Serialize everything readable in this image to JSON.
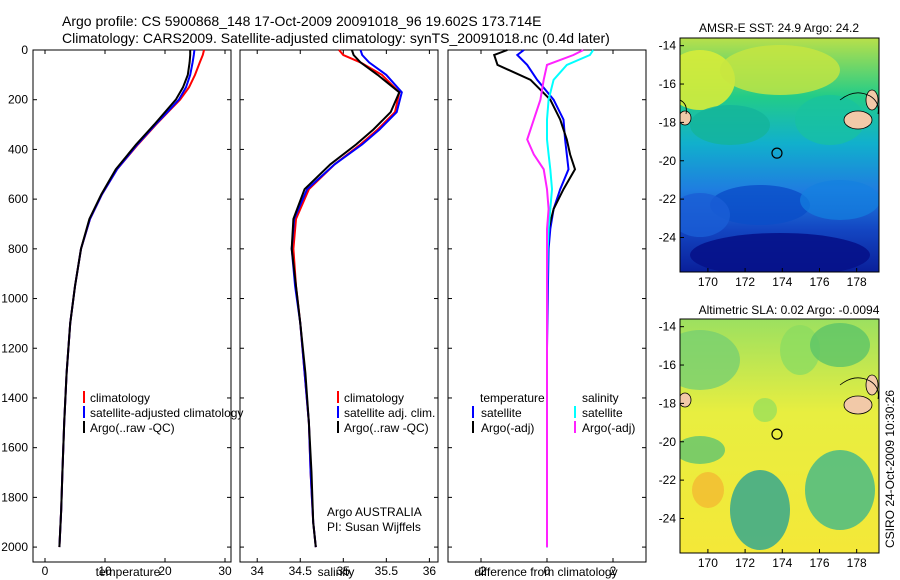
{
  "header": {
    "line1": "Argo profile: CS 5900868_148 17-Oct-2009 20091018_96 19.602S 173.714E",
    "line2": "Climatology: CARS2009. Satellite-adjusted climatology: synTS_20091018.nc (0.4d later)"
  },
  "colors": {
    "climatology": "#ff0000",
    "satellite": "#0000ff",
    "argo": "#000000",
    "argo_salinity_diff": "#ff22ff",
    "satellite_salinity_diff": "#00ffff"
  },
  "chart_data": [
    {
      "type": "line",
      "name": "temperature-profile",
      "xlabel": "temperature",
      "ylabel": "",
      "xlim": [
        -2,
        31
      ],
      "ylim": [
        0,
        2060
      ],
      "y_reversed": true,
      "xticks": [
        0,
        10,
        20,
        30
      ],
      "yticks": [
        0,
        200,
        400,
        600,
        800,
        1000,
        1200,
        1400,
        1600,
        1800,
        2000
      ],
      "legend": [
        "climatology",
        "satellite-adjusted climatology",
        "Argo(..raw -QC)"
      ],
      "legend_position": "lower-center",
      "series": [
        {
          "name": "climatology",
          "color_key": "climatology",
          "x": [
            26.5,
            26.3,
            25.8,
            25.0,
            24.0,
            22.5,
            20.5,
            18.5,
            15.5,
            12.0,
            9.5,
            7.5,
            6.0,
            5.0,
            4.2,
            3.6,
            3.2,
            2.9,
            2.7,
            2.5,
            2.4
          ],
          "y": [
            0,
            20,
            50,
            100,
            150,
            200,
            250,
            300,
            380,
            480,
            580,
            680,
            800,
            950,
            1100,
            1300,
            1500,
            1700,
            1850,
            1950,
            2000
          ]
        },
        {
          "name": "satellite-adjusted climatology",
          "color_key": "satellite",
          "x": [
            24.9,
            24.8,
            24.6,
            24.2,
            23.5,
            22.3,
            20.4,
            18.4,
            15.4,
            12.0,
            9.5,
            7.5,
            6.0,
            5.0,
            4.2,
            3.6,
            3.2,
            2.9,
            2.7,
            2.5,
            2.4
          ],
          "y": [
            0,
            20,
            50,
            100,
            150,
            200,
            250,
            300,
            380,
            480,
            580,
            680,
            800,
            950,
            1100,
            1300,
            1500,
            1700,
            1850,
            1950,
            2000
          ]
        },
        {
          "name": "Argo(..raw -QC)",
          "color_key": "argo",
          "x": [
            24.2,
            24.2,
            24.1,
            23.8,
            23.0,
            21.8,
            20.0,
            18.2,
            15.2,
            11.8,
            9.4,
            7.4,
            6.0,
            5.0,
            4.2,
            3.6,
            3.2,
            2.9,
            2.7,
            2.5,
            2.4
          ],
          "y": [
            0,
            20,
            50,
            100,
            150,
            200,
            250,
            300,
            380,
            480,
            580,
            680,
            800,
            950,
            1100,
            1300,
            1500,
            1700,
            1850,
            1950,
            2000
          ]
        }
      ]
    },
    {
      "type": "line",
      "name": "salinity-profile",
      "xlabel": "salinity",
      "ylabel": "",
      "xlim": [
        33.8,
        36.1
      ],
      "ylim": [
        0,
        2060
      ],
      "y_reversed": true,
      "xticks": [
        34,
        34.5,
        35,
        35.5,
        36
      ],
      "legend": [
        "climatology",
        "satellite adj. clim.",
        "Argo(..raw -QC)"
      ],
      "legend_position": "lower-right",
      "annotation": [
        "Argo AUSTRALIA",
        "PI: Susan Wijffels"
      ],
      "series": [
        {
          "name": "climatology",
          "color_key": "climatology",
          "x": [
            34.95,
            35.0,
            35.2,
            35.45,
            35.65,
            35.6,
            35.4,
            35.2,
            34.9,
            34.6,
            34.45,
            34.42,
            34.45,
            34.5,
            34.55,
            34.6,
            34.62,
            34.65,
            34.68
          ],
          "y": [
            0,
            20,
            50,
            100,
            170,
            250,
            320,
            380,
            460,
            560,
            680,
            800,
            950,
            1100,
            1300,
            1500,
            1700,
            1900,
            2000
          ]
        },
        {
          "name": "satellite adj. clim.",
          "color_key": "satellite",
          "x": [
            35.2,
            35.22,
            35.3,
            35.5,
            35.68,
            35.62,
            35.42,
            35.22,
            34.9,
            34.58,
            34.43,
            34.4,
            34.44,
            34.5,
            34.55,
            34.6,
            34.62,
            34.65,
            34.68
          ],
          "y": [
            0,
            20,
            50,
            100,
            170,
            250,
            320,
            380,
            460,
            560,
            680,
            800,
            950,
            1100,
            1300,
            1500,
            1700,
            1900,
            2000
          ]
        },
        {
          "name": "Argo(..raw -QC)",
          "color_key": "argo",
          "x": [
            35.1,
            35.12,
            35.2,
            35.4,
            35.65,
            35.55,
            35.35,
            35.15,
            34.85,
            34.55,
            34.42,
            34.4,
            34.45,
            34.5,
            34.56,
            34.6,
            34.63,
            34.65,
            34.68
          ],
          "y": [
            0,
            20,
            50,
            100,
            170,
            250,
            320,
            380,
            460,
            560,
            680,
            800,
            950,
            1100,
            1300,
            1500,
            1700,
            1900,
            2000
          ]
        }
      ]
    },
    {
      "type": "line",
      "name": "difference-profile",
      "xlabel": "difference from climatology",
      "ylabel": "",
      "xlim": [
        -3,
        3
      ],
      "ylim": [
        0,
        2060
      ],
      "y_reversed": true,
      "xticks": [
        -2,
        0,
        2
      ],
      "legend_groups": [
        {
          "title": "temperature",
          "items": [
            "satellite",
            "Argo(-adj)"
          ]
        },
        {
          "title": "salinity",
          "items": [
            "satellite",
            "Argo(-adj)"
          ]
        }
      ],
      "series": [
        {
          "name": "temperature satellite",
          "color_key": "satellite",
          "x": [
            -0.7,
            -0.9,
            -0.6,
            -0.3,
            0.2,
            0.5,
            0.55,
            0.6,
            0.65,
            0.4,
            0.2,
            0.1,
            0.05,
            0.02,
            0.0,
            0.0,
            0.0,
            0.0,
            0.0
          ],
          "y": [
            0,
            20,
            60,
            120,
            200,
            280,
            360,
            420,
            480,
            560,
            640,
            720,
            800,
            1000,
            1200,
            1400,
            1600,
            1800,
            2000
          ]
        },
        {
          "name": "temperature Argo(-adj)",
          "color_key": "argo",
          "x": [
            -1.2,
            -1.6,
            -1.5,
            -0.5,
            0.1,
            0.4,
            0.6,
            0.7,
            0.85,
            0.5,
            0.2,
            0.05,
            0.0,
            0.0,
            0.0,
            0.0,
            0.0,
            0.0,
            0.0
          ],
          "y": [
            0,
            20,
            60,
            120,
            200,
            280,
            360,
            420,
            480,
            560,
            640,
            720,
            800,
            1000,
            1200,
            1400,
            1600,
            1800,
            2000
          ]
        },
        {
          "name": "salinity satellite",
          "color_key": "satellite_salinity_diff",
          "x": [
            1.4,
            1.3,
            0.6,
            0.2,
            0.05,
            0.0,
            0.0,
            0.05,
            0.1,
            0.15,
            0.1,
            0.05,
            0.02,
            0.0,
            0.0,
            0.0,
            0.0,
            0.0,
            0.0
          ],
          "y": [
            0,
            20,
            60,
            120,
            200,
            280,
            360,
            420,
            480,
            560,
            640,
            720,
            800,
            1000,
            1200,
            1400,
            1600,
            1800,
            2000
          ]
        },
        {
          "name": "salinity Argo(-adj)",
          "color_key": "argo_salinity_diff",
          "x": [
            1.1,
            0.8,
            0.0,
            -0.1,
            -0.2,
            -0.4,
            -0.6,
            -0.4,
            -0.1,
            0.0,
            0.05,
            0.0,
            0.0,
            0.0,
            0.0,
            0.0,
            0.0,
            0.0,
            0.0
          ],
          "y": [
            0,
            20,
            60,
            120,
            200,
            280,
            360,
            420,
            480,
            560,
            640,
            720,
            800,
            1000,
            1200,
            1400,
            1600,
            1800,
            2000
          ]
        }
      ]
    },
    {
      "type": "heatmap",
      "name": "sst-map",
      "title": "AMSR-E SST: 24.9 Argo: 24.2",
      "xlim": [
        168.5,
        179.2
      ],
      "ylim": [
        -25.8,
        -13.6
      ],
      "xticks": [
        170,
        172,
        174,
        176,
        178
      ],
      "yticks": [
        -14,
        -16,
        -18,
        -20,
        -22,
        -24
      ],
      "argo_position": {
        "lon": 173.714,
        "lat": -19.602
      }
    },
    {
      "type": "heatmap",
      "name": "sla-map",
      "title": "Altimetric SLA: 0.02 Argo: -0.0094",
      "xlim": [
        168.5,
        179.2
      ],
      "ylim": [
        -25.8,
        -13.6
      ],
      "xticks": [
        170,
        172,
        174,
        176,
        178
      ],
      "yticks": [
        -14,
        -16,
        -18,
        -20,
        -22,
        -24
      ],
      "argo_position": {
        "lon": 173.714,
        "lat": -19.602
      }
    }
  ],
  "legends": {
    "temperature": [
      "climatology",
      "satellite-adjusted climatology",
      "Argo(..raw -QC)"
    ],
    "salinity": [
      "climatology",
      "satellite adj. clim.",
      "Argo(..raw -QC)"
    ],
    "difference_temp_title": "temperature",
    "difference_sal_title": "salinity",
    "difference_items": [
      "satellite",
      "Argo(-adj)"
    ]
  },
  "annotation": {
    "org": "Argo AUSTRALIA",
    "pi": "PI: Susan Wijffels"
  },
  "footer": "CSIRO 24-Oct-2009 10:30:26"
}
